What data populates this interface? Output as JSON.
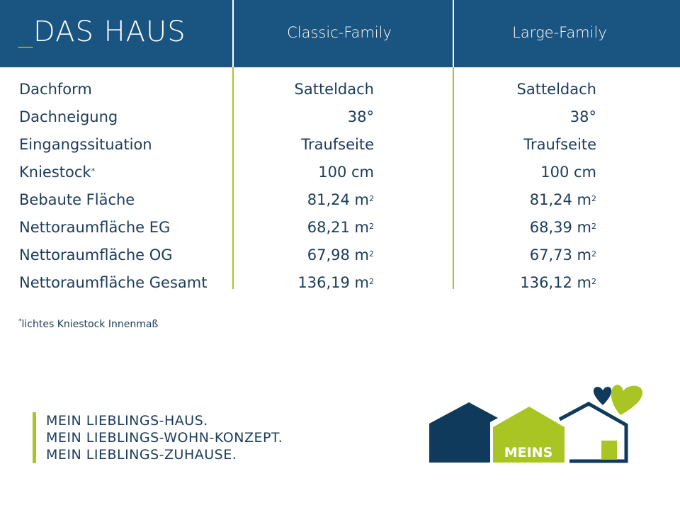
{
  "header": {
    "title_prefix": "_",
    "title": "DAS HAUS",
    "columns": [
      "Classic-Family",
      "Large-Family"
    ]
  },
  "rows": [
    {
      "label": "Dachform",
      "sup": "",
      "classic": "Satteldach",
      "large": "Satteldach"
    },
    {
      "label": "Dachneigung",
      "sup": "",
      "classic": "38°",
      "large": "38°"
    },
    {
      "label": "Eingangssituation",
      "sup": "",
      "classic": "Traufseite",
      "large": "Traufseite"
    },
    {
      "label": "Kniestock",
      "sup": "*",
      "classic": "100 cm",
      "large": "100 cm"
    },
    {
      "label": "Bebaute Fläche",
      "sup": "",
      "classic": "81,24 m",
      "large": "81,24 m",
      "unit_sup": "2"
    },
    {
      "label": "Nettoraumfläche EG",
      "sup": "",
      "classic": "68,21 m",
      "large": "68,39 m",
      "unit_sup": "2"
    },
    {
      "label": "Nettoraumfläche OG",
      "sup": "",
      "classic": "67,98 m",
      "large": "67,73 m",
      "unit_sup": "2"
    },
    {
      "label": "Nettoraumfläche Gesamt",
      "sup": "",
      "classic": "136,19 m",
      "large": "136,12 m",
      "unit_sup": "2"
    }
  ],
  "footnote": {
    "mark": "*",
    "text": "lichtes Kniestock Innenmaß"
  },
  "slogan": [
    "MEIN LIEBLINGS-HAUS.",
    "MEIN LIEBLINGS-WOHN-KONZEPT.",
    "MEIN LIEBLINGS-ZUHAUSE."
  ],
  "logo": {
    "text": "MEINS"
  },
  "colors": {
    "header_bg": "#1a5480",
    "accent_green": "#a8c523",
    "navy": "#0f3a5c",
    "text": "#1b3b5a"
  }
}
